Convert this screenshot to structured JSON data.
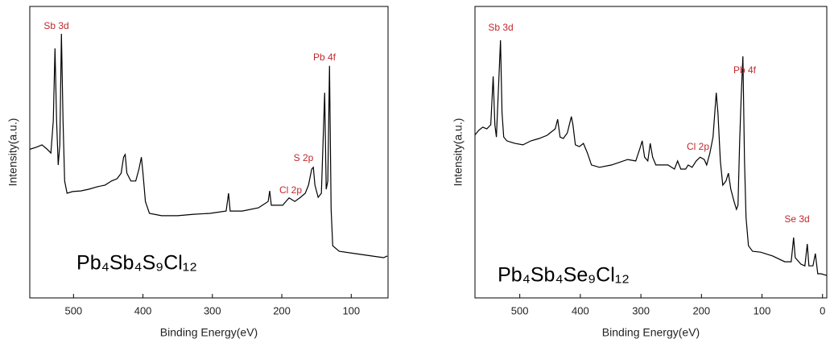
{
  "chart_data": [
    {
      "type": "line",
      "xlabel": "Binding Energy(eV)",
      "ylabel": "Intensity(a.u.)",
      "xlim": [
        563,
        47
      ],
      "ylim": [
        0,
        100
      ],
      "xticks": [
        500,
        400,
        300,
        200,
        100
      ],
      "annotations": [
        "Sb 3d",
        "Pb 4f",
        "S 2p",
        "Cl 2p"
      ],
      "sample": "Pb₄Sb₄S₉Cl₁₂",
      "color": "#000000",
      "x": [
        563,
        553.5,
        545.4,
        538.4,
        532.6,
        529.1,
        526.7,
        524.4,
        522.1,
        519.8,
        517.4,
        515.1,
        512.8,
        509.3,
        501.2,
        489.5,
        477.9,
        466.3,
        454.6,
        445.3,
        437.2,
        431.4,
        427.9,
        425.6,
        423.2,
        417.4,
        410.4,
        405.8,
        402.3,
        400.0,
        396.5,
        390.7,
        373.2,
        350.0,
        326.7,
        303.5,
        280.2,
        276.7,
        274.4,
        257.0,
        233.7,
        219.7,
        217.4,
        215.1,
        198.8,
        191.8,
        189.5,
        181.3,
        173.2,
        166.2,
        161.6,
        156.9,
        154.6,
        152.3,
        147.6,
        143.0,
        138.3,
        136.0,
        133.7,
        131.3,
        129.0,
        126.7,
        117.4,
        94.1,
        70.8,
        53.4,
        48
      ],
      "values": [
        51,
        51.7,
        52.5,
        51.1,
        49.7,
        60.8,
        85.6,
        60.8,
        45.6,
        52.5,
        90.6,
        60.8,
        40.1,
        35.9,
        36.5,
        36.7,
        37.3,
        38.1,
        38.7,
        40.1,
        40.9,
        42.8,
        48.3,
        49.2,
        42.8,
        40.1,
        40.1,
        44.2,
        48.3,
        42.8,
        33.1,
        29.0,
        28.2,
        28.2,
        28.7,
        29.0,
        29.8,
        35.9,
        29.8,
        29.8,
        30.9,
        33.1,
        36.7,
        31.8,
        31.8,
        33.7,
        34.3,
        33.1,
        34.5,
        35.9,
        38.7,
        44.2,
        44.8,
        38.7,
        34.5,
        35.9,
        70.4,
        37.3,
        40.1,
        79.6,
        30.4,
        17.9,
        16.0,
        15.2,
        14.4,
        13.8,
        14.4
      ]
    },
    {
      "type": "line",
      "xlabel": "Binding Energy(eV)",
      "ylabel": "Intensity(a.u.)",
      "xlim": [
        574,
        -7
      ],
      "ylim": [
        0,
        100
      ],
      "xticks": [
        500,
        400,
        300,
        200,
        100,
        0
      ],
      "annotations": [
        "Sb 3d",
        "Pb 4f",
        "Cl 2p",
        "Se 3d"
      ],
      "sample": "Pb₄Sb₄Se₉Cl₁₂",
      "color": "#000000",
      "x": [
        574.5,
        567.8,
        561.2,
        554.5,
        547.9,
        543.9,
        541.2,
        538.6,
        534.6,
        531.9,
        529.3,
        526.6,
        521.3,
        508.0,
        494.7,
        481.4,
        468.1,
        454.8,
        441.5,
        437.5,
        433.5,
        428.2,
        421.5,
        414.9,
        412.2,
        408.2,
        401.6,
        394.9,
        388.3,
        381.6,
        368.3,
        348.4,
        321.8,
        308.5,
        301.8,
        297.8,
        293.9,
        288.5,
        284.5,
        280.6,
        275.2,
        255.3,
        244.6,
        239.3,
        234.0,
        226.0,
        222.0,
        215.4,
        208.7,
        202.1,
        195.4,
        191.4,
        186.1,
        180.8,
        175.5,
        172.8,
        168.8,
        164.8,
        159.5,
        155.5,
        151.5,
        146.2,
        142.2,
        139.6,
        136.9,
        134.3,
        131.6,
        128.9,
        126.3,
        122.3,
        115.6,
        102.3,
        82.4,
        62.4,
        51.8,
        47.8,
        45.1,
        35.8,
        29.2,
        25.2,
        22.5,
        15.9,
        11.9,
        7.9,
        2.6,
        -6.7
      ],
      "values": [
        55.8,
        57.5,
        58.6,
        58.0,
        59.4,
        76.0,
        59.4,
        55.2,
        74.6,
        88.4,
        63.5,
        55.2,
        53.9,
        53.0,
        52.5,
        53.9,
        54.7,
        55.8,
        58.0,
        61.3,
        55.2,
        54.7,
        56.6,
        62.2,
        59.4,
        52.5,
        51.9,
        53.0,
        49.7,
        45.6,
        44.8,
        45.6,
        47.5,
        47.0,
        51.1,
        53.9,
        48.3,
        47.0,
        53.0,
        48.3,
        45.6,
        45.6,
        44.2,
        47.0,
        44.2,
        44.2,
        45.6,
        44.8,
        47.0,
        48.3,
        47.5,
        45.6,
        49.7,
        55.2,
        70.4,
        63.5,
        47.0,
        38.7,
        40.1,
        42.8,
        37.3,
        33.1,
        30.4,
        31.8,
        53.9,
        69.1,
        82.9,
        47.0,
        27.6,
        17.9,
        16.0,
        15.7,
        14.4,
        12.4,
        12.4,
        20.7,
        13.8,
        11.6,
        11.0,
        18.5,
        11.0,
        11.0,
        15.2,
        8.3,
        8.3,
        7.7
      ]
    }
  ]
}
